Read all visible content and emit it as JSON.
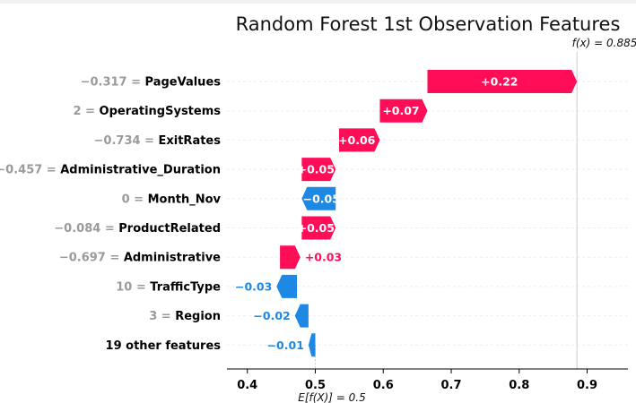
{
  "chart_data": {
    "type": "waterfall",
    "title": "Random Forest 1st Observation Features",
    "base_value": 0.5,
    "base_label": "E[f(X)] = 0.5",
    "final_value": 0.885,
    "final_label": "f(x) = 0.885",
    "xlim": [
      0.37,
      0.96
    ],
    "xticks": [
      0.4,
      0.5,
      0.6,
      0.7,
      0.8,
      0.9
    ],
    "xtick_labels": [
      "0.4",
      "0.5",
      "0.6",
      "0.7",
      "0.8",
      "0.9"
    ],
    "features": [
      {
        "value": "−0.317",
        "name": "PageValues",
        "contribution": 0.22,
        "label": "+0.22",
        "start": 0.665
      },
      {
        "value": "2",
        "name": "OperatingSystems",
        "contribution": 0.07,
        "label": "+0.07",
        "start": 0.595
      },
      {
        "value": "−0.734",
        "name": "ExitRates",
        "contribution": 0.06,
        "label": "+0.06",
        "start": 0.535
      },
      {
        "value": "−0.457",
        "name": "Administrative_Duration",
        "contribution": 0.05,
        "label": "+0.05",
        "start": 0.48
      },
      {
        "value": "0",
        "name": "Month_Nov",
        "contribution": -0.05,
        "label": "−0.05",
        "start": 0.53
      },
      {
        "value": "−0.084",
        "name": "ProductRelated",
        "contribution": 0.05,
        "label": "+0.05",
        "start": 0.48
      },
      {
        "value": "−0.697",
        "name": "Administrative",
        "contribution": 0.03,
        "label": "+0.03",
        "start": 0.448
      },
      {
        "value": "10",
        "name": "TrafficType",
        "contribution": -0.03,
        "label": "−0.03",
        "start": 0.473
      },
      {
        "value": "3",
        "name": "Region",
        "contribution": -0.02,
        "label": "−0.02",
        "start": 0.49
      },
      {
        "value": "",
        "name": "19 other features",
        "contribution": -0.01,
        "label": "−0.01",
        "start": 0.5
      }
    ],
    "colors": {
      "positive": "#ff0d57",
      "negative": "#1e88e5"
    }
  }
}
